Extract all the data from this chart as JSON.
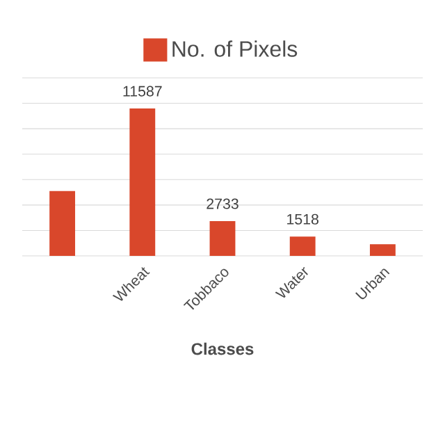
{
  "chart_data": {
    "type": "bar",
    "xlabel": "Classes",
    "categories": [
      null,
      "Wheat",
      "Tobbaco",
      "Water",
      "Urban"
    ],
    "series": [
      {
        "name": "No. of Pixels",
        "color": "#d9472b",
        "values": [
          5100,
          11587,
          2733,
          1518,
          920
        ],
        "value_labels": [
          null,
          "11587",
          "2733",
          "1518",
          null
        ]
      }
    ],
    "ylim": [
      0,
      14000
    ],
    "yticks": [
      {
        "value": 0,
        "label": null
      },
      {
        "value": 2000,
        "label": null
      },
      {
        "value": 4000,
        "label": null
      },
      {
        "value": 6000,
        "label": null
      },
      {
        "value": 8000,
        "label": null
      },
      {
        "value": 10000,
        "label": null
      },
      {
        "value": 12000,
        "label": null
      },
      {
        "value": 14000,
        "label": null
      }
    ],
    "tick_labels": "x",
    "grid": "y",
    "legend": "top"
  }
}
